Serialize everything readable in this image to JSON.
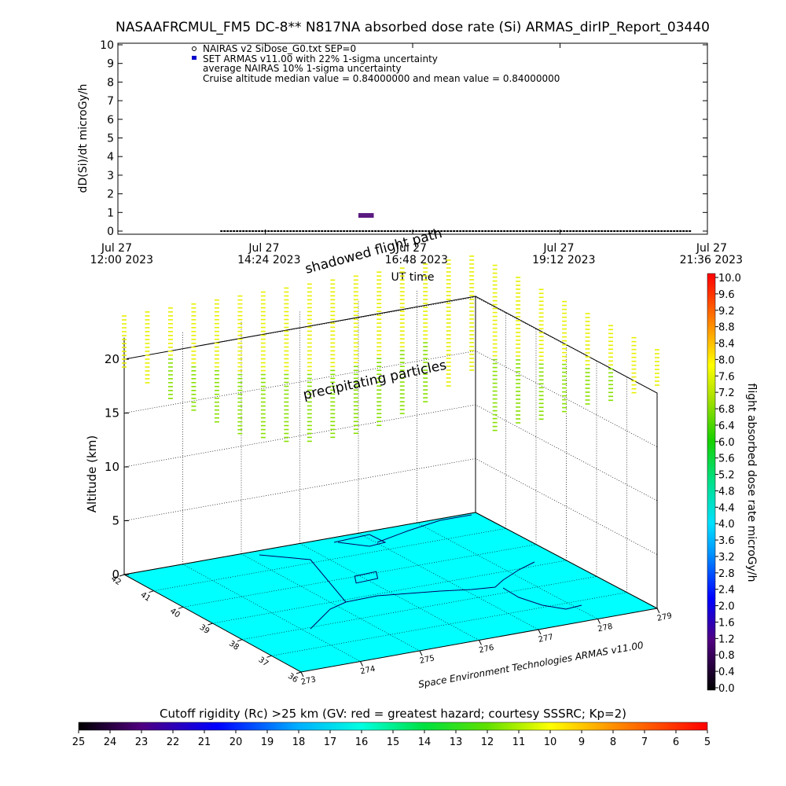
{
  "title": "NASAAFRCMUL_FM5 DC-8** N817NA absorbed dose rate (Si) ARMAS_dirIP_Report_03440",
  "top_chart": {
    "ylabel": "dD(Si)/dt microGy/h",
    "xlabel": "UT time",
    "legend": [
      "NAIRAS v2 SiDose_G0.txt SEP=0",
      "SET ARMAS v11.00 with 22% 1-sigma uncertainty",
      "average NAIRAS 10% 1-sigma uncertainty",
      "Cruise altitude median value = 0.84000000 and mean value = 0.84000000"
    ],
    "time_ticks": [
      {
        "date": "Jul 27",
        "time": "12:00 2023"
      },
      {
        "date": "Jul 27",
        "time": "14:24 2023"
      },
      {
        "date": "Jul 27",
        "time": "16:48 2023"
      },
      {
        "date": "Jul 27",
        "time": "19:12 2023"
      },
      {
        "date": "Jul 27",
        "time": "21:36 2023"
      }
    ],
    "y_ticks": [
      "0",
      "1",
      "2",
      "3",
      "4",
      "5",
      "6",
      "7",
      "8",
      "9",
      "10"
    ]
  },
  "chart_data": [
    {
      "type": "scatter",
      "title": "NASAAFRCMUL_FM5 DC-8** N817NA absorbed dose rate (Si) ARMAS_dirIP_Report_03440",
      "xlabel": "UT time",
      "ylabel": "dD(Si)/dt microGy/h",
      "xlim": [
        "2023-07-27 12:00",
        "2023-07-27 21:36"
      ],
      "ylim": [
        0,
        10
      ],
      "series": [
        {
          "name": "NAIRAS v2 SiDose_G0.txt SEP=0",
          "color": "#000000",
          "x": [
            "2023-07-27 13:40",
            "2023-07-27 21:20"
          ],
          "y": [
            0,
            0
          ]
        },
        {
          "name": "SET ARMAS v11.00 with 22% 1-sigma uncertainty",
          "color": "#5a1a80",
          "x": [
            "2023-07-27 15:55",
            "2023-07-27 16:10"
          ],
          "y": [
            0.84,
            0.84
          ]
        }
      ]
    },
    {
      "type": "scatter",
      "zlabel": "Altitude (km)",
      "zlim": [
        0,
        22
      ],
      "x_ticks": [
        "273",
        "274",
        "275",
        "276",
        "277",
        "278",
        "279"
      ],
      "y_ticks": [
        "42",
        "41",
        "40",
        "39",
        "38",
        "37",
        "36"
      ],
      "z_ticks": [
        "0",
        "5",
        "10",
        "15",
        "20"
      ],
      "annotations": [
        "shadowed flight path",
        "precipitating particles",
        "Space Environment Technologies ARMAS v11.00"
      ],
      "surface_color": "#00ffff"
    }
  ],
  "right_colorbar": {
    "label": "flight absorbed dose rate microGy/h",
    "ticks": [
      "10.0",
      "9.6",
      "9.2",
      "8.8",
      "8.4",
      "8.0",
      "7.6",
      "7.2",
      "6.8",
      "6.4",
      "6.0",
      "5.6",
      "5.2",
      "4.8",
      "4.4",
      "4.0",
      "3.6",
      "3.2",
      "2.8",
      "2.4",
      "2.0",
      "1.6",
      "1.2",
      "0.8",
      "0.4",
      "0.0"
    ]
  },
  "bottom_colorbar": {
    "label": "Cutoff rigidity (Rc) >25 km (GV: red = greatest hazard; courtesy SSSRC; Kp=2)",
    "ticks": [
      "25",
      "24",
      "23",
      "22",
      "21",
      "20",
      "19",
      "18",
      "17",
      "16",
      "15",
      "14",
      "13",
      "12",
      "11",
      "10",
      "9",
      "8",
      "7",
      "6",
      "5"
    ]
  }
}
